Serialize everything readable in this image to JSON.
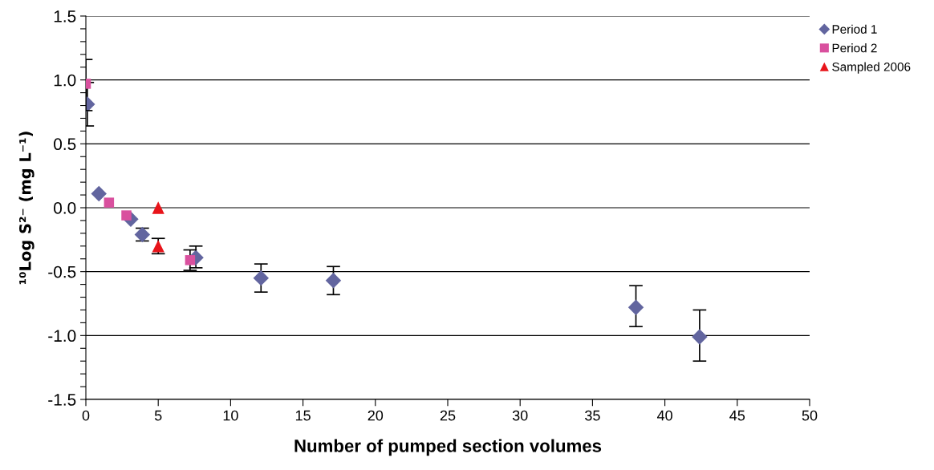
{
  "chart_data": {
    "type": "scatter",
    "xlabel": "Number of pumped section volumes",
    "ylabel": "¹⁰Log S²⁻ (mg L⁻¹)",
    "xlim": [
      0,
      50
    ],
    "xticks": [
      0,
      5,
      10,
      15,
      20,
      25,
      30,
      35,
      40,
      45,
      50
    ],
    "ylim": [
      -1.5,
      1.5
    ],
    "yticks": [
      {
        "value": -1.5,
        "label": "-1.5"
      },
      {
        "value": -1.4,
        "label": null
      },
      {
        "value": -1.3,
        "label": null
      },
      {
        "value": -1.2,
        "label": null
      },
      {
        "value": -1.1,
        "label": null
      },
      {
        "value": -1.0,
        "label": "-1.0"
      },
      {
        "value": -0.9,
        "label": null
      },
      {
        "value": -0.8,
        "label": null
      },
      {
        "value": -0.7,
        "label": null
      },
      {
        "value": -0.6,
        "label": null
      },
      {
        "value": -0.5,
        "label": "-0.5"
      },
      {
        "value": -0.4,
        "label": null
      },
      {
        "value": -0.3,
        "label": null
      },
      {
        "value": -0.2,
        "label": null
      },
      {
        "value": -0.1,
        "label": null
      },
      {
        "value": 0.0,
        "label": "0.0"
      },
      {
        "value": 0.1,
        "label": null
      },
      {
        "value": 0.2,
        "label": null
      },
      {
        "value": 0.3,
        "label": null
      },
      {
        "value": 0.4,
        "label": null
      },
      {
        "value": 0.5,
        "label": "0.5"
      },
      {
        "value": 0.6,
        "label": null
      },
      {
        "value": 0.7,
        "label": null
      },
      {
        "value": 0.8,
        "label": null
      },
      {
        "value": 0.9,
        "label": null
      },
      {
        "value": 1.0,
        "label": "1.0"
      },
      {
        "value": 1.1,
        "label": null
      },
      {
        "value": 1.2,
        "label": null
      },
      {
        "value": 1.3,
        "label": null
      },
      {
        "value": 1.4,
        "label": null
      },
      {
        "value": 1.5,
        "label": "1.5"
      }
    ],
    "grid": "y",
    "legend": "top right",
    "series": [
      {
        "name": "Period 1",
        "color": "#62659f",
        "marker": "diamond",
        "x": [
          0.1,
          0.9,
          3.1,
          3.9,
          7.6,
          12.1,
          17.1,
          38.0,
          42.4
        ],
        "values": [
          0.81,
          0.11,
          -0.09,
          -0.21,
          -0.39,
          -0.55,
          -0.57,
          -0.78,
          -1.01
        ],
        "errors": [
          [
            0.64,
            0.98
          ],
          null,
          null,
          [
            -0.26,
            -0.16
          ],
          [
            -0.47,
            -0.3
          ],
          [
            -0.66,
            -0.44
          ],
          [
            -0.68,
            -0.46
          ],
          [
            -0.93,
            -0.61
          ],
          [
            -1.2,
            -0.8
          ]
        ]
      },
      {
        "name": "Period 2",
        "color": "#d9509e",
        "marker": "square",
        "x": [
          0.0,
          1.6,
          2.8,
          7.2
        ],
        "values": [
          0.97,
          0.04,
          -0.06,
          -0.41
        ],
        "errors": [
          [
            0.76,
            1.16
          ],
          null,
          null,
          [
            -0.49,
            -0.33
          ]
        ]
      },
      {
        "name": "Sampled 2006",
        "color": "#e8141a",
        "marker": "triangle",
        "x": [
          5.0,
          5.0
        ],
        "values": [
          0.0,
          -0.3
        ],
        "errors": [
          null,
          [
            -0.36,
            -0.24
          ]
        ]
      }
    ]
  }
}
